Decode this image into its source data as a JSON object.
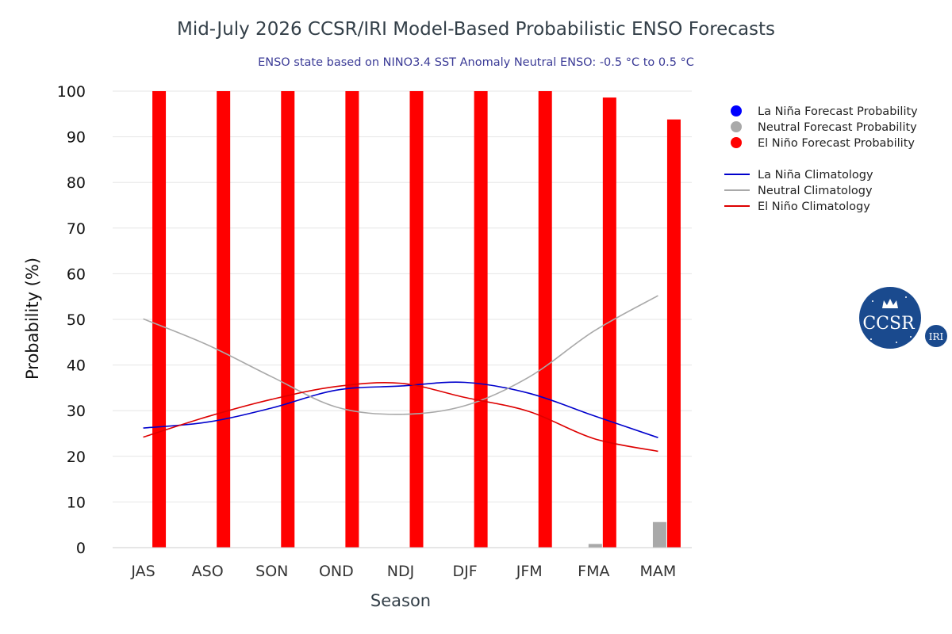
{
  "chart_data": {
    "type": "bar",
    "title": "Mid-July 2026 CCSR/IRI Model-Based Probabilistic ENSO Forecasts",
    "subtitle": "ENSO state based on NINO3.4 SST Anomaly Neutral ENSO: -0.5 °C to 0.5 °C",
    "xlabel": "Season",
    "ylabel": "Probability (%)",
    "ylim": [
      0,
      100
    ],
    "yticks": [
      0,
      10,
      20,
      30,
      40,
      50,
      60,
      70,
      80,
      90,
      100
    ],
    "grid": true,
    "legend_position": "right",
    "categories": [
      "JAS",
      "ASO",
      "SON",
      "OND",
      "NDJ",
      "DJF",
      "JFM",
      "FMA",
      "MAM"
    ],
    "bar_series": [
      {
        "name": "La Niña Forecast Probability",
        "color": "#0000ff",
        "values": [
          0,
          0,
          0,
          0,
          0,
          0,
          0,
          0,
          0
        ]
      },
      {
        "name": "Neutral Forecast Probability",
        "color": "#a9a9a9",
        "values": [
          0,
          0,
          0,
          0,
          0,
          0,
          0,
          0.8,
          5.6
        ]
      },
      {
        "name": "El Niño Forecast Probability",
        "color": "#ff0000",
        "values": [
          100,
          100,
          100,
          100,
          100,
          100,
          100,
          98.6,
          93.8
        ]
      }
    ],
    "line_series": [
      {
        "name": "La Niña Climatology",
        "color": "#0000cc",
        "values": [
          26.2,
          27.5,
          30.6,
          34.5,
          35.4,
          36.2,
          33.8,
          28.9,
          24.1
        ]
      },
      {
        "name": "Neutral Climatology",
        "color": "#a9a9a9",
        "values": [
          50.1,
          44.4,
          37.4,
          30.8,
          29.2,
          31.1,
          37.4,
          47.4,
          55.2
        ]
      },
      {
        "name": "El Niño Climatology",
        "color": "#dd0000",
        "values": [
          24.2,
          28.7,
          32.5,
          35.3,
          36.0,
          32.9,
          29.8,
          23.9,
          21.1
        ]
      }
    ]
  },
  "logo": {
    "main_text": "CCSR",
    "badge_text": "IRI"
  }
}
